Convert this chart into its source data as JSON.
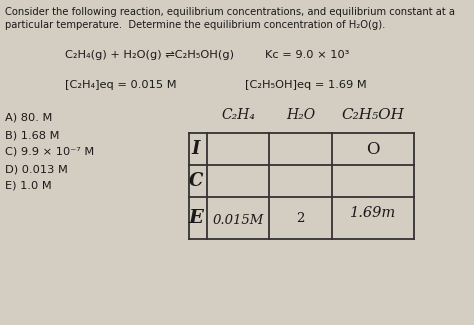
{
  "bg_color": "#d4cdc2",
  "text_color": "#1a1a1a",
  "title_line1": "Consider the following reaction, equilibrium concentrations, and equilibrium constant at a",
  "title_line2": "particular temperature.  Determine the equilibrium concentration of H₂O(g).",
  "reaction_left": "C₂H₄(g) + H₂O(g) ⇌C₂H₅OH(g)",
  "kc": "Kᴄ = 9.0 × 10³",
  "c2h4_eq": "[C₂H₄]eq = 0.015 M",
  "c2h5oh_eq": "[C₂H₅OH]eq = 1.69 M",
  "choices": [
    "A) 80. M",
    "B) 1.68 M",
    "C) 9.9 × 10⁻⁷ M",
    "D) 0.013 M",
    "E) 1.0 M"
  ],
  "table_header_col1": "C₂H₄",
  "table_header_col2": "H₂O",
  "table_header_col3": "C₂H₅OH",
  "row_i_col3": "O",
  "row_e_col1": "0.015M",
  "row_e_col2": "2",
  "row_e_col3": "1.69m",
  "lc": "#333333",
  "lw": 1.3
}
